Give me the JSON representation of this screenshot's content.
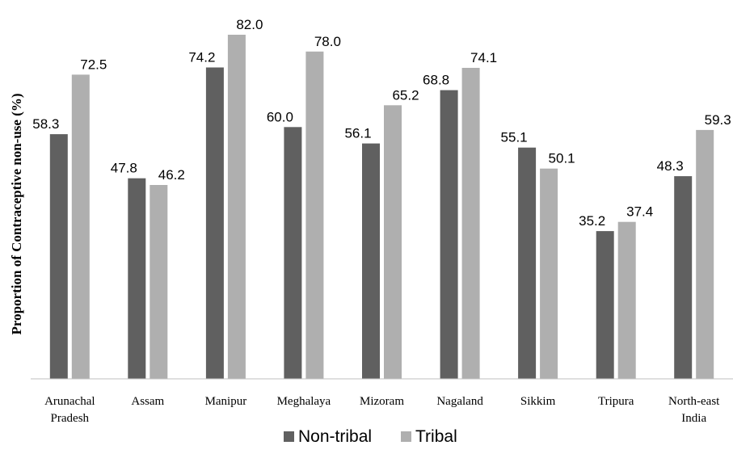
{
  "chart_data": {
    "type": "bar",
    "title": "",
    "xlabel": "",
    "ylabel": "Proportion of Contraceptive non-use (%)",
    "ylim": [
      0,
      100
    ],
    "grid": false,
    "legend_position": "bottom",
    "categories": [
      [
        "Arunachal",
        "Pradesh"
      ],
      [
        "Assam"
      ],
      [
        "Manipur"
      ],
      [
        "Meghalaya"
      ],
      [
        "Mizoram"
      ],
      [
        "Nagaland"
      ],
      [
        "Sikkim"
      ],
      [
        "Tripura"
      ],
      [
        "North-east",
        "India"
      ]
    ],
    "series": [
      {
        "name": "Non-tribal",
        "color": "#606060",
        "values": [
          58.3,
          47.8,
          74.2,
          60.0,
          56.1,
          68.8,
          55.1,
          35.2,
          48.3
        ],
        "labels": [
          "58.3",
          "47.8",
          "74.2",
          "60.0",
          "56.1",
          "68.8",
          "55.1",
          "35.2",
          "48.3"
        ]
      },
      {
        "name": "Tribal",
        "color": "#afafaf",
        "values": [
          72.5,
          46.2,
          82.0,
          78.0,
          65.2,
          74.1,
          50.1,
          37.4,
          59.3
        ],
        "labels": [
          "72.5",
          "46.2",
          "82.0",
          "78.0",
          "65.2",
          "74.1",
          "50.1",
          "37.4",
          "59.3"
        ]
      }
    ]
  }
}
